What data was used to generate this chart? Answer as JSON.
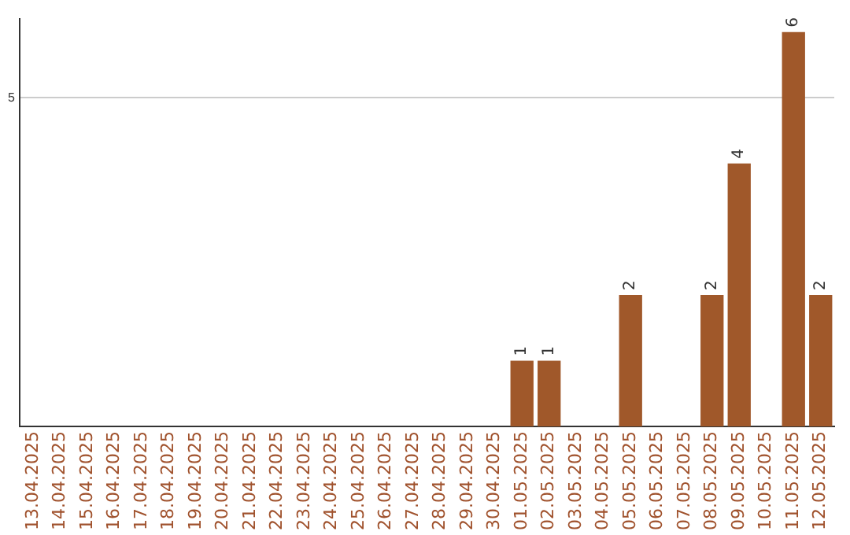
{
  "chart_data": {
    "type": "bar",
    "categories": [
      "13.04.2025",
      "14.04.2025",
      "15.04.2025",
      "16.04.2025",
      "17.04.2025",
      "18.04.2025",
      "19.04.2025",
      "20.04.2025",
      "21.04.2025",
      "22.04.2025",
      "23.04.2025",
      "24.04.2025",
      "25.04.2025",
      "26.04.2025",
      "27.04.2025",
      "28.04.2025",
      "29.04.2025",
      "30.04.2025",
      "01.05.2025",
      "02.05.2025",
      "03.05.2025",
      "04.05.2025",
      "05.05.2025",
      "06.05.2025",
      "07.05.2025",
      "08.05.2025",
      "09.05.2025",
      "10.05.2025",
      "11.05.2025",
      "12.05.2025"
    ],
    "values": [
      null,
      null,
      null,
      null,
      null,
      null,
      null,
      null,
      null,
      null,
      null,
      null,
      null,
      null,
      null,
      null,
      null,
      null,
      1,
      1,
      null,
      null,
      2,
      null,
      null,
      2,
      4,
      null,
      6,
      2
    ],
    "color": "#a0582a",
    "ylim": [
      0,
      6.2
    ],
    "yticks": [
      5
    ],
    "grid": "y",
    "data_labels": true,
    "legend": false
  }
}
